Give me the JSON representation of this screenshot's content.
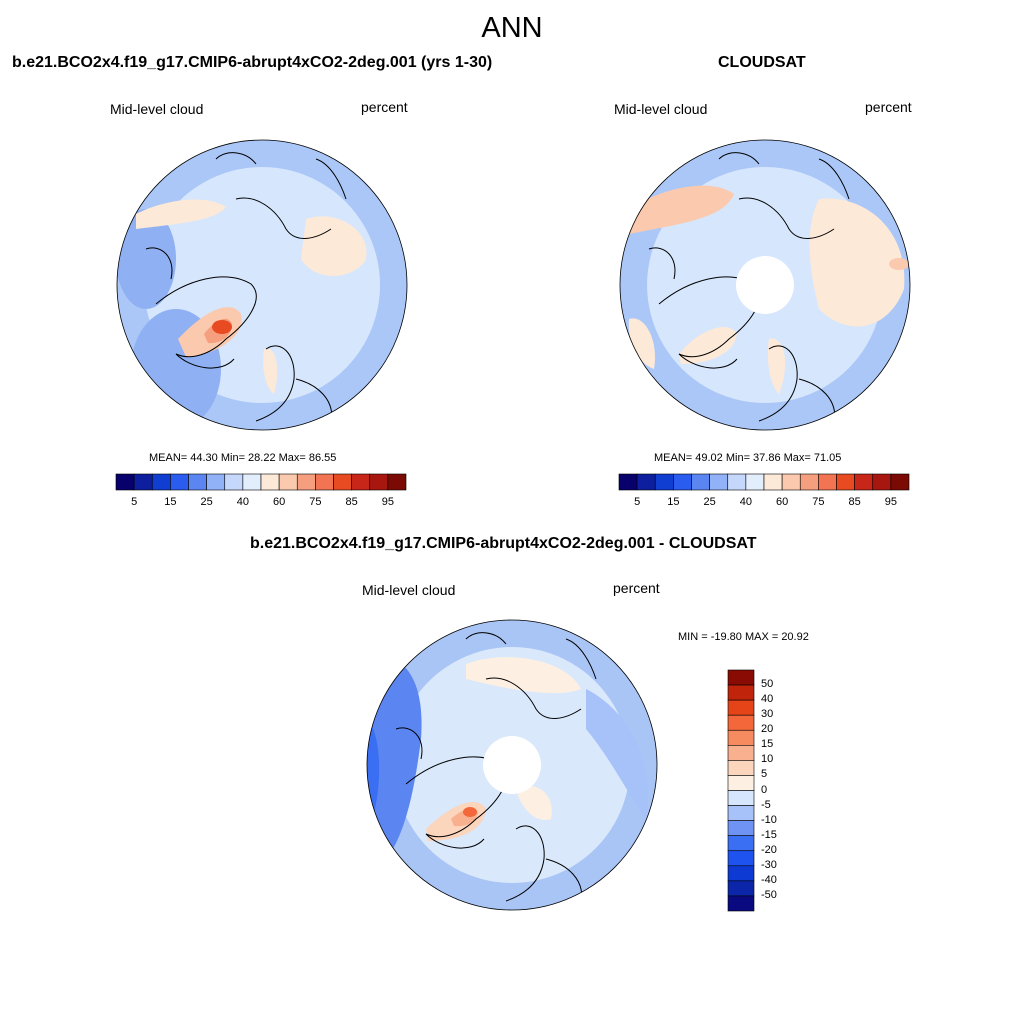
{
  "main_title": "ANN",
  "colors": {
    "abs_palette": [
      "#08006b",
      "#0d1f9e",
      "#0f3ed0",
      "#2a5cf0",
      "#5b86f2",
      "#91b2f7",
      "#c5d8fb",
      "#e3eefc",
      "#fde9d8",
      "#fbc9ae",
      "#f59f7f",
      "#f27452",
      "#e84a21",
      "#c9261a",
      "#a7170f",
      "#7a0a03"
    ],
    "diff_palette": [
      "#0a0a80",
      "#0b26a8",
      "#0d3ad3",
      "#1e53ef",
      "#3a6ff3",
      "#6e93f4",
      "#a6c2f9",
      "#d6e6fc",
      "#fdf0e3",
      "#fcd5bd",
      "#f9b08e",
      "#f68b5f",
      "#f3673a",
      "#e54419",
      "#c0250c",
      "#8a0b04"
    ],
    "map_ocean": "#d9e8fb",
    "map_blue": "#a9c5f6"
  },
  "panels": [
    {
      "title": "b.e21.BCO2x4.f19_g17.CMIP6-abrupt4xCO2-2deg.001 (yrs 1-30)",
      "variable": "Mid-level cloud",
      "units": "percent",
      "stats": "MEAN=  44.30  Min=  28.22  Max=  86.55",
      "colorbar_ticks": [
        "5",
        "15",
        "25",
        "40",
        "60",
        "75",
        "85",
        "95"
      ],
      "polar_hole": false
    },
    {
      "title": "CLOUDSAT",
      "variable": "Mid-level cloud",
      "units": "percent",
      "stats": "MEAN=  49.02  Min=  37.86  Max=  71.05",
      "colorbar_ticks": [
        "5",
        "15",
        "25",
        "40",
        "60",
        "75",
        "85",
        "95"
      ],
      "polar_hole": true
    }
  ],
  "diff_panel": {
    "title": "b.e21.BCO2x4.f19_g17.CMIP6-abrupt4xCO2-2deg.001 - CLOUDSAT",
    "variable": "Mid-level cloud",
    "units": "percent",
    "stats": "MIN = -19.80 MAX =  20.92",
    "colorbar_ticks": [
      "50",
      "40",
      "30",
      "20",
      "15",
      "10",
      "5",
      "0",
      "-5",
      "-10",
      "-15",
      "-20",
      "-30",
      "-40",
      "-50"
    ],
    "polar_hole": true
  }
}
